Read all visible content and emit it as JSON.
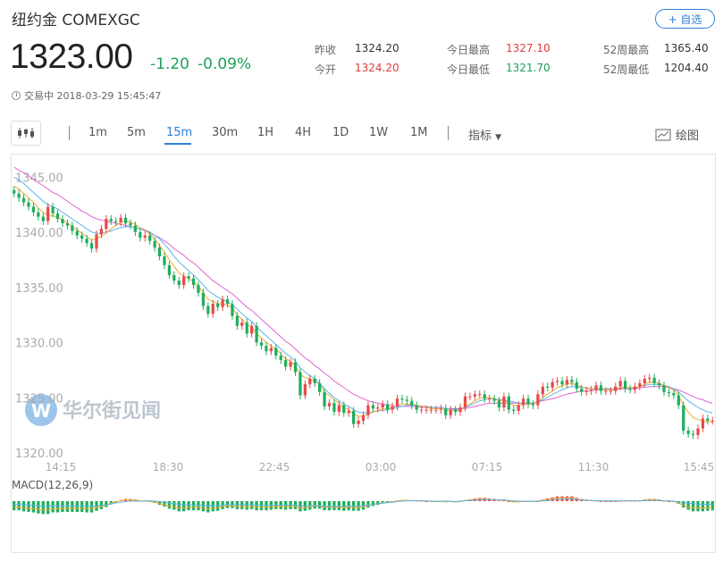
{
  "header": {
    "title": "纽约金 COMEXGC",
    "fav_label": "+ 自选",
    "price": "1323.00",
    "change": "-1.20",
    "change_pct": "-0.09%",
    "status": "交易中 2018-03-29 15:45:47"
  },
  "stats": {
    "prev_close_label": "昨收",
    "prev_close": "1324.20",
    "open_label": "今开",
    "open": "1324.20",
    "high_label": "今日最高",
    "high": "1327.10",
    "low_label": "今日最低",
    "low": "1321.70",
    "w52_high_label": "52周最高",
    "w52_high": "1365.40",
    "w52_low_label": "52周最低",
    "w52_low": "1204.40"
  },
  "toolbar": {
    "intervals": [
      "1m",
      "5m",
      "15m",
      "30m",
      "1H",
      "4H",
      "1D",
      "1W",
      "1M"
    ],
    "active_interval": "15m",
    "indicator_label": "指标",
    "draw_label": "绘图"
  },
  "chart": {
    "watermark": "华尔街见闻",
    "macd_label": "MACD(12,26,9)",
    "colors": {
      "up": "#e84a4a",
      "down": "#1fae5c",
      "ma_fast": "#f0a830",
      "ma_mid": "#5bb4e8",
      "ma_slow": "#e064d0"
    }
  },
  "chart_data": {
    "type": "candlestick",
    "ylim": [
      1320,
      1346
    ],
    "yticks": [
      1345.0,
      1340.0,
      1335.0,
      1330.0,
      1325.0,
      1320.0
    ],
    "ytick_labels": [
      "1345.00",
      "1340.00",
      "1335.00",
      "1330.00",
      "1325.00",
      "1320.00"
    ],
    "xtick_labels": [
      "14:15",
      "18:30",
      "22:45",
      "03:00",
      "07:15",
      "11:30",
      "15:45"
    ],
    "close": [
      1343.6,
      1343.2,
      1342.8,
      1342.4,
      1341.9,
      1341.5,
      1341.1,
      1342.4,
      1341.8,
      1341.3,
      1340.9,
      1340.7,
      1340.2,
      1339.8,
      1339.5,
      1339.1,
      1338.6,
      1339.9,
      1340.4,
      1341.3,
      1341.1,
      1341.0,
      1341.4,
      1340.9,
      1340.7,
      1340.1,
      1339.6,
      1339.8,
      1339.3,
      1338.7,
      1337.9,
      1337.1,
      1336.2,
      1335.7,
      1335.3,
      1336.1,
      1335.9,
      1335.3,
      1334.6,
      1333.4,
      1332.7,
      1333.6,
      1333.3,
      1334.0,
      1333.6,
      1332.5,
      1331.6,
      1331.9,
      1330.9,
      1331.6,
      1330.1,
      1329.8,
      1329.3,
      1329.6,
      1328.9,
      1328.5,
      1327.9,
      1328.3,
      1327.4,
      1325.3,
      1326.3,
      1326.8,
      1326.4,
      1325.6,
      1324.3,
      1324.6,
      1323.8,
      1324.4,
      1323.7,
      1323.9,
      1322.7,
      1323.0,
      1323.5,
      1324.4,
      1324.1,
      1324.2,
      1324.5,
      1324.0,
      1324.3,
      1325.0,
      1324.9,
      1324.8,
      1324.4,
      1324.0,
      1324.0,
      1324.0,
      1324.0,
      1324.0,
      1324.1,
      1323.5,
      1324.0,
      1323.8,
      1324.2,
      1325.2,
      1325.2,
      1325.4,
      1325.4,
      1325.0,
      1325.0,
      1324.8,
      1324.2,
      1325.2,
      1324.0,
      1323.9,
      1324.4,
      1325.0,
      1324.5,
      1324.4,
      1325.4,
      1326.1,
      1326.0,
      1326.5,
      1326.6,
      1326.3,
      1326.7,
      1326.5,
      1325.9,
      1325.6,
      1325.7,
      1325.8,
      1326.2,
      1325.7,
      1325.7,
      1325.7,
      1326.1,
      1326.6,
      1325.9,
      1325.8,
      1326.1,
      1326.4,
      1326.8,
      1326.9,
      1326.4,
      1326.2,
      1325.6,
      1325.5,
      1325.3,
      1324.4,
      1322.1,
      1321.8,
      1321.7,
      1322.3,
      1323.2,
      1323.0,
      1323.0
    ],
    "ma_fast": [
      1344.3,
      1344.0,
      1343.6,
      1343.2,
      1342.8,
      1342.3,
      1341.9,
      1341.6,
      1341.6,
      1341.4,
      1341.2,
      1340.9,
      1340.6,
      1340.3,
      1340.0,
      1339.7,
      1339.4,
      1339.5,
      1339.7,
      1340.0,
      1340.4,
      1340.7,
      1341.0,
      1341.1,
      1341.0,
      1340.8,
      1340.5,
      1340.3,
      1339.9,
      1339.5,
      1338.9,
      1338.3,
      1337.6,
      1337.0,
      1336.4,
      1336.1,
      1335.9,
      1335.6,
      1335.2,
      1334.6,
      1334.0,
      1333.8,
      1333.6,
      1333.6,
      1333.5,
      1333.2,
      1332.6,
      1332.2,
      1331.7,
      1331.5,
      1330.9,
      1330.5,
      1330.1,
      1329.8,
      1329.5,
      1329.1,
      1328.6,
      1328.4,
      1328.0,
      1327.2,
      1326.9,
      1326.8,
      1326.6,
      1326.3,
      1325.6,
      1325.3,
      1324.9,
      1324.6,
      1324.2,
      1324.0,
      1323.6,
      1323.4,
      1323.4,
      1323.6,
      1323.8,
      1323.9,
      1324.1,
      1324.1,
      1324.2,
      1324.4,
      1324.5,
      1324.5,
      1324.5,
      1324.4,
      1324.3,
      1324.2,
      1324.1,
      1324.1,
      1324.1,
      1323.9,
      1324.0,
      1323.9,
      1324.0,
      1324.3,
      1324.5,
      1324.8,
      1325.0,
      1325.1,
      1325.1,
      1325.0,
      1324.8,
      1324.9,
      1324.6,
      1324.4,
      1324.4,
      1324.5,
      1324.5,
      1324.5,
      1324.7,
      1325.1,
      1325.4,
      1325.7,
      1326.0,
      1326.2,
      1326.3,
      1326.4,
      1326.2,
      1326.1,
      1325.9,
      1325.9,
      1325.9,
      1325.8,
      1325.8,
      1325.8,
      1325.8,
      1326.0,
      1326.0,
      1326.0,
      1326.0,
      1326.1,
      1326.3,
      1326.5,
      1326.5,
      1326.4,
      1326.2,
      1326.0,
      1325.8,
      1325.3,
      1324.4,
      1323.8,
      1323.3,
      1323.1,
      1323.0,
      1322.9,
      1322.9
    ],
    "ma_mid": [
      1345.1,
      1344.8,
      1344.5,
      1344.1,
      1343.7,
      1343.3,
      1342.9,
      1342.6,
      1342.4,
      1342.2,
      1341.9,
      1341.6,
      1341.3,
      1341.0,
      1340.7,
      1340.4,
      1340.1,
      1340.0,
      1340.0,
      1340.1,
      1340.2,
      1340.4,
      1340.5,
      1340.6,
      1340.6,
      1340.5,
      1340.4,
      1340.3,
      1340.1,
      1339.8,
      1339.5,
      1339.0,
      1338.5,
      1337.9,
      1337.4,
      1337.0,
      1336.6,
      1336.2,
      1335.8,
      1335.3,
      1334.8,
      1334.5,
      1334.2,
      1334.0,
      1333.8,
      1333.5,
      1333.1,
      1332.7,
      1332.3,
      1332.0,
      1331.5,
      1331.1,
      1330.7,
      1330.3,
      1329.9,
      1329.5,
      1329.1,
      1328.8,
      1328.4,
      1327.8,
      1327.4,
      1327.1,
      1326.8,
      1326.4,
      1325.9,
      1325.5,
      1325.1,
      1324.8,
      1324.5,
      1324.3,
      1324.0,
      1323.8,
      1323.7,
      1323.7,
      1323.8,
      1323.9,
      1323.9,
      1324.0,
      1324.1,
      1324.2,
      1324.3,
      1324.4,
      1324.4,
      1324.4,
      1324.3,
      1324.3,
      1324.2,
      1324.2,
      1324.2,
      1324.1,
      1324.1,
      1324.0,
      1324.1,
      1324.2,
      1324.4,
      1324.6,
      1324.8,
      1324.9,
      1325.0,
      1325.0,
      1324.9,
      1324.9,
      1324.8,
      1324.7,
      1324.6,
      1324.6,
      1324.6,
      1324.6,
      1324.7,
      1324.9,
      1325.1,
      1325.4,
      1325.6,
      1325.8,
      1326.0,
      1326.1,
      1326.1,
      1326.0,
      1326.0,
      1325.9,
      1325.9,
      1325.9,
      1325.9,
      1325.9,
      1325.9,
      1326.0,
      1326.0,
      1326.0,
      1326.0,
      1326.1,
      1326.2,
      1326.3,
      1326.3,
      1326.3,
      1326.2,
      1326.1,
      1325.9,
      1325.6,
      1325.2,
      1324.8,
      1324.5,
      1324.2,
      1324.0,
      1323.8,
      1323.7
    ],
    "ma_slow": [
      1346.0,
      1345.7,
      1345.5,
      1345.2,
      1344.9,
      1344.6,
      1344.3,
      1344.0,
      1343.7,
      1343.5,
      1343.2,
      1342.9,
      1342.6,
      1342.3,
      1342.0,
      1341.8,
      1341.5,
      1341.3,
      1341.2,
      1341.1,
      1341.0,
      1340.9,
      1340.8,
      1340.7,
      1340.6,
      1340.5,
      1340.4,
      1340.2,
      1340.0,
      1339.8,
      1339.6,
      1339.3,
      1339.0,
      1338.6,
      1338.3,
      1338.0,
      1337.6,
      1337.3,
      1336.9,
      1336.5,
      1336.1,
      1335.7,
      1335.4,
      1335.1,
      1334.8,
      1334.5,
      1334.1,
      1333.7,
      1333.3,
      1333.0,
      1332.6,
      1332.2,
      1331.8,
      1331.4,
      1331.0,
      1330.6,
      1330.2,
      1329.9,
      1329.5,
      1329.1,
      1328.7,
      1328.4,
      1328.0,
      1327.7,
      1327.3,
      1327.0,
      1326.6,
      1326.3,
      1326.0,
      1325.7,
      1325.4,
      1325.2,
      1325.0,
      1324.8,
      1324.7,
      1324.6,
      1324.5,
      1324.4,
      1324.4,
      1324.3,
      1324.3,
      1324.3,
      1324.3,
      1324.3,
      1324.2,
      1324.2,
      1324.2,
      1324.2,
      1324.2,
      1324.1,
      1324.1,
      1324.1,
      1324.1,
      1324.1,
      1324.2,
      1324.3,
      1324.4,
      1324.5,
      1324.6,
      1324.6,
      1324.6,
      1324.6,
      1324.6,
      1324.6,
      1324.6,
      1324.6,
      1324.6,
      1324.6,
      1324.7,
      1324.8,
      1324.9,
      1325.0,
      1325.1,
      1325.3,
      1325.4,
      1325.5,
      1325.6,
      1325.7,
      1325.7,
      1325.7,
      1325.8,
      1325.8,
      1325.8,
      1325.8,
      1325.8,
      1325.9,
      1325.9,
      1325.9,
      1325.9,
      1326.0,
      1326.0,
      1326.1,
      1326.1,
      1326.1,
      1326.1,
      1326.0,
      1325.9,
      1325.8,
      1325.6,
      1325.4,
      1325.2,
      1325.0,
      1324.9,
      1324.7,
      1324.6
    ]
  }
}
